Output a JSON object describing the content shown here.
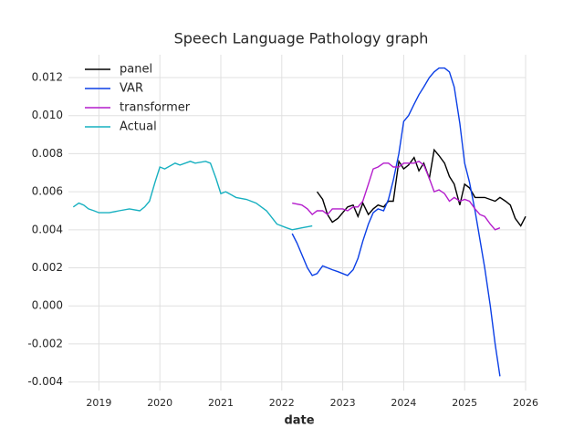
{
  "chart_data": {
    "type": "line",
    "title": "Speech Language Pathology graph",
    "x_label": "date",
    "xlim": [
      2018.5,
      2026
    ],
    "xticks": [
      2019,
      2020,
      2021,
      2022,
      2023,
      2024,
      2025,
      2026
    ],
    "ylim": [
      -0.00445,
      0.0132
    ],
    "yticks": [
      -0.004,
      -0.002,
      {
        "value": 0,
        "label": "0.000"
      },
      0.002,
      0.004,
      0.006,
      0.008,
      {
        "value": 0.01,
        "label": "0.010"
      },
      0.012
    ],
    "grid": true,
    "legend": "upper left",
    "series": [
      {
        "name": "panel",
        "color": "#000000",
        "x": [
          2022.58,
          2022.67,
          2022.75,
          2022.83,
          2022.92,
          2023.0,
          2023.08,
          2023.17,
          2023.25,
          2023.33,
          2023.42,
          2023.5,
          2023.58,
          2023.67,
          2023.75,
          2023.83,
          2023.92,
          2024.0,
          2024.08,
          2024.17,
          2024.25,
          2024.33,
          2024.42,
          2024.5,
          2024.58,
          2024.67,
          2024.75,
          2024.83,
          2024.92,
          2025.0,
          2025.08,
          2025.17,
          2025.33,
          2025.5,
          2025.58,
          2025.67,
          2025.75,
          2025.83,
          2025.92,
          2026.0
        ],
        "values": [
          0.006,
          0.0056,
          0.0048,
          0.0044,
          0.0046,
          0.0049,
          0.0052,
          0.0053,
          0.0047,
          0.0054,
          0.0048,
          0.0051,
          0.0053,
          0.0052,
          0.0055,
          0.0055,
          0.0076,
          0.0072,
          0.0074,
          0.0078,
          0.0071,
          0.0075,
          0.0067,
          0.0082,
          0.0079,
          0.0075,
          0.0068,
          0.0064,
          0.0053,
          0.0064,
          0.0062,
          0.0057,
          0.0057,
          0.0055,
          0.0057,
          0.0055,
          0.0053,
          0.0046,
          0.0042,
          0.0047
        ]
      },
      {
        "name": "VAR",
        "color": "#0b3fe6",
        "x": [
          2022.17,
          2022.25,
          2022.42,
          2022.5,
          2022.58,
          2022.67,
          2022.83,
          2022.92,
          2023.0,
          2023.08,
          2023.17,
          2023.25,
          2023.33,
          2023.42,
          2023.5,
          2023.58,
          2023.67,
          2023.75,
          2023.83,
          2023.92,
          2024.0,
          2024.08,
          2024.17,
          2024.25,
          2024.33,
          2024.42,
          2024.5,
          2024.58,
          2024.67,
          2024.75,
          2024.83,
          2024.92,
          2025.0,
          2025.08,
          2025.17,
          2025.25,
          2025.33,
          2025.42,
          2025.5,
          2025.58
        ],
        "values": [
          0.0038,
          0.0033,
          0.002,
          0.0016,
          0.0017,
          0.0021,
          0.0019,
          0.0018,
          0.0017,
          0.0016,
          0.0019,
          0.0025,
          0.0034,
          0.0043,
          0.0049,
          0.0051,
          0.005,
          0.0056,
          0.0066,
          0.008,
          0.0097,
          0.01,
          0.0106,
          0.0111,
          0.0115,
          0.012,
          0.0123,
          0.0125,
          0.0125,
          0.0123,
          0.0115,
          0.0096,
          0.0075,
          0.0065,
          0.005,
          0.0035,
          0.002,
          0.0,
          -0.002,
          -0.0037
        ]
      },
      {
        "name": "transformer",
        "color": "#b41ccc",
        "x": [
          2022.17,
          2022.33,
          2022.42,
          2022.5,
          2022.58,
          2022.67,
          2022.75,
          2022.83,
          2023.0,
          2023.08,
          2023.17,
          2023.25,
          2023.33,
          2023.42,
          2023.5,
          2023.58,
          2023.67,
          2023.75,
          2023.83,
          2023.92,
          2024.0,
          2024.17,
          2024.25,
          2024.33,
          2024.42,
          2024.5,
          2024.58,
          2024.67,
          2024.75,
          2024.83,
          2024.92,
          2025.0,
          2025.08,
          2025.17,
          2025.25,
          2025.33,
          2025.42,
          2025.5,
          2025.58
        ],
        "values": [
          0.0054,
          0.0053,
          0.0051,
          0.0048,
          0.005,
          0.005,
          0.0048,
          0.0051,
          0.0051,
          0.005,
          0.0052,
          0.0052,
          0.0055,
          0.0064,
          0.0072,
          0.0073,
          0.0075,
          0.0075,
          0.0073,
          0.0073,
          0.0075,
          0.0075,
          0.0076,
          0.0074,
          0.0067,
          0.006,
          0.0061,
          0.0059,
          0.0055,
          0.0057,
          0.0055,
          0.0056,
          0.0055,
          0.0051,
          0.0048,
          0.0047,
          0.0043,
          0.004,
          0.0041
        ]
      },
      {
        "name": "Actual",
        "color": "#17b0c0",
        "x": [
          2018.58,
          2018.67,
          2018.75,
          2018.83,
          2018.92,
          2019.0,
          2019.17,
          2019.33,
          2019.5,
          2019.67,
          2019.75,
          2019.83,
          2019.92,
          2020.0,
          2020.08,
          2020.25,
          2020.33,
          2020.5,
          2020.58,
          2020.75,
          2020.83,
          2020.92,
          2021.0,
          2021.08,
          2021.25,
          2021.42,
          2021.58,
          2021.75,
          2021.92,
          2022.08,
          2022.17,
          2022.33,
          2022.5
        ],
        "values": [
          0.0052,
          0.0054,
          0.0053,
          0.0051,
          0.005,
          0.0049,
          0.0049,
          0.005,
          0.0051,
          0.005,
          0.0052,
          0.0055,
          0.0065,
          0.0073,
          0.0072,
          0.0075,
          0.0074,
          0.0076,
          0.0075,
          0.0076,
          0.0075,
          0.0067,
          0.0059,
          0.006,
          0.0057,
          0.0056,
          0.0054,
          0.005,
          0.0043,
          0.0041,
          0.004,
          0.0041,
          0.0042
        ]
      }
    ]
  }
}
